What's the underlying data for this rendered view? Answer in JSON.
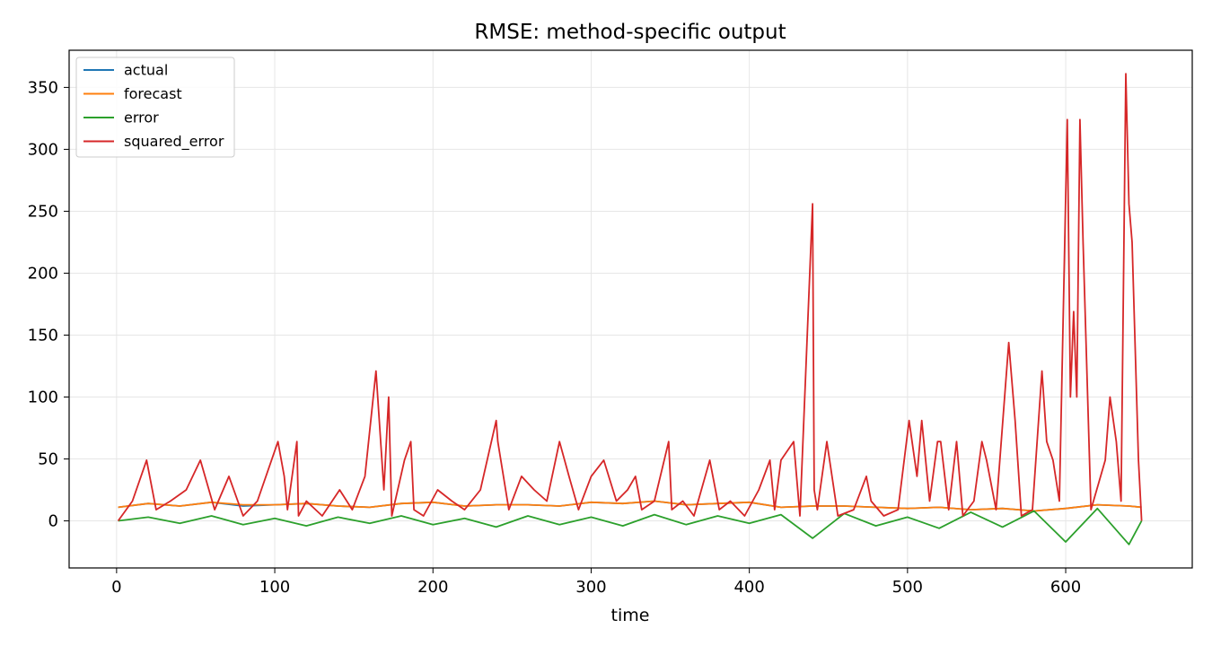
{
  "chart_data": {
    "type": "line",
    "title": "RMSE: method-specific output",
    "xlabel": "time",
    "ylabel": "",
    "xlim": [
      -30,
      680
    ],
    "ylim": [
      -38,
      380
    ],
    "xticks": [
      0,
      100,
      200,
      300,
      400,
      500,
      600
    ],
    "yticks": [
      0,
      50,
      100,
      150,
      200,
      250,
      300,
      350
    ],
    "grid": true,
    "legend_position": "top-left",
    "colors": {
      "actual": "#1f77b4",
      "forecast": "#ff7f0e",
      "error": "#2ca02c",
      "squared_error": "#d62728"
    },
    "series": [
      {
        "name": "actual",
        "x": [
          1,
          20,
          40,
          60,
          80,
          100,
          120,
          140,
          160,
          180,
          200,
          220,
          240,
          260,
          280,
          300,
          320,
          340,
          360,
          380,
          400,
          420,
          440,
          460,
          480,
          500,
          520,
          540,
          560,
          580,
          600,
          620,
          640,
          648
        ],
        "values": [
          11,
          14,
          12,
          15,
          12,
          13,
          14,
          12,
          11,
          14,
          15,
          12,
          13,
          13,
          12,
          15,
          14,
          16,
          13,
          14,
          15,
          11,
          12,
          12,
          11,
          10,
          11,
          9,
          10,
          8,
          10,
          13,
          12,
          11
        ]
      },
      {
        "name": "forecast",
        "x": [
          1,
          20,
          40,
          60,
          80,
          100,
          120,
          140,
          160,
          180,
          200,
          220,
          240,
          260,
          280,
          300,
          320,
          340,
          360,
          380,
          400,
          420,
          440,
          460,
          480,
          500,
          520,
          540,
          560,
          580,
          600,
          620,
          640,
          648
        ],
        "values": [
          11,
          14,
          12,
          15,
          13,
          13,
          14,
          12,
          11,
          14,
          15,
          12,
          13,
          13,
          12,
          15,
          14,
          16,
          13,
          14,
          15,
          11,
          12,
          12,
          11,
          10,
          11,
          9,
          10,
          8,
          10,
          13,
          12,
          11
        ]
      },
      {
        "name": "error",
        "x": [
          1,
          20,
          40,
          60,
          80,
          100,
          120,
          140,
          160,
          180,
          200,
          220,
          240,
          260,
          280,
          300,
          320,
          340,
          360,
          380,
          400,
          420,
          440,
          460,
          480,
          500,
          520,
          540,
          560,
          580,
          600,
          620,
          640,
          648
        ],
        "values": [
          0,
          3,
          -2,
          4,
          -3,
          2,
          -4,
          3,
          -2,
          4,
          -3,
          2,
          -5,
          4,
          -3,
          3,
          -4,
          5,
          -3,
          4,
          -2,
          5,
          -14,
          6,
          -4,
          3,
          -6,
          7,
          -5,
          8,
          -17,
          10,
          -19,
          0
        ]
      },
      {
        "name": "squared_error",
        "x": [
          1,
          10,
          19,
          25,
          34,
          44,
          53,
          62,
          71,
          80,
          89,
          102,
          106,
          108,
          114,
          115,
          120,
          130,
          141,
          149,
          157,
          164,
          169,
          172,
          174,
          182,
          186,
          188,
          194,
          203,
          212,
          220,
          230,
          240,
          241,
          248,
          256,
          264,
          272,
          280,
          286,
          292,
          300,
          308,
          316,
          323,
          328,
          332,
          340,
          349,
          351,
          358,
          365,
          375,
          381,
          388,
          397,
          406,
          413,
          416,
          420,
          428,
          432,
          440,
          441,
          443,
          449,
          456,
          466,
          474,
          477,
          485,
          494,
          501,
          506,
          509,
          514,
          519,
          521,
          526,
          531,
          535,
          542,
          547,
          550,
          556,
          564,
          568,
          572,
          579,
          585,
          588,
          592,
          596,
          601,
          603,
          605,
          607,
          609,
          611,
          616,
          625,
          628,
          632,
          635,
          638,
          640,
          642,
          646,
          648
        ],
        "values": [
          0,
          16,
          49,
          9,
          16,
          25,
          49,
          9,
          36,
          4,
          16,
          64,
          36,
          9,
          64,
          4,
          16,
          4,
          25,
          9,
          36,
          121,
          25,
          100,
          4,
          49,
          64,
          9,
          4,
          25,
          16,
          9,
          25,
          81,
          64,
          9,
          36,
          25,
          16,
          64,
          36,
          9,
          36,
          49,
          16,
          25,
          36,
          9,
          16,
          64,
          9,
          16,
          4,
          49,
          9,
          16,
          4,
          25,
          49,
          9,
          49,
          64,
          4,
          256,
          25,
          9,
          64,
          4,
          9,
          36,
          16,
          4,
          9,
          81,
          36,
          81,
          16,
          64,
          64,
          9,
          64,
          4,
          16,
          64,
          49,
          9,
          144,
          81,
          4,
          9,
          121,
          64,
          49,
          16,
          324,
          100,
          169,
          100,
          324,
          225,
          9,
          49,
          100,
          64,
          16,
          361,
          256,
          225,
          49,
          0
        ]
      }
    ]
  }
}
